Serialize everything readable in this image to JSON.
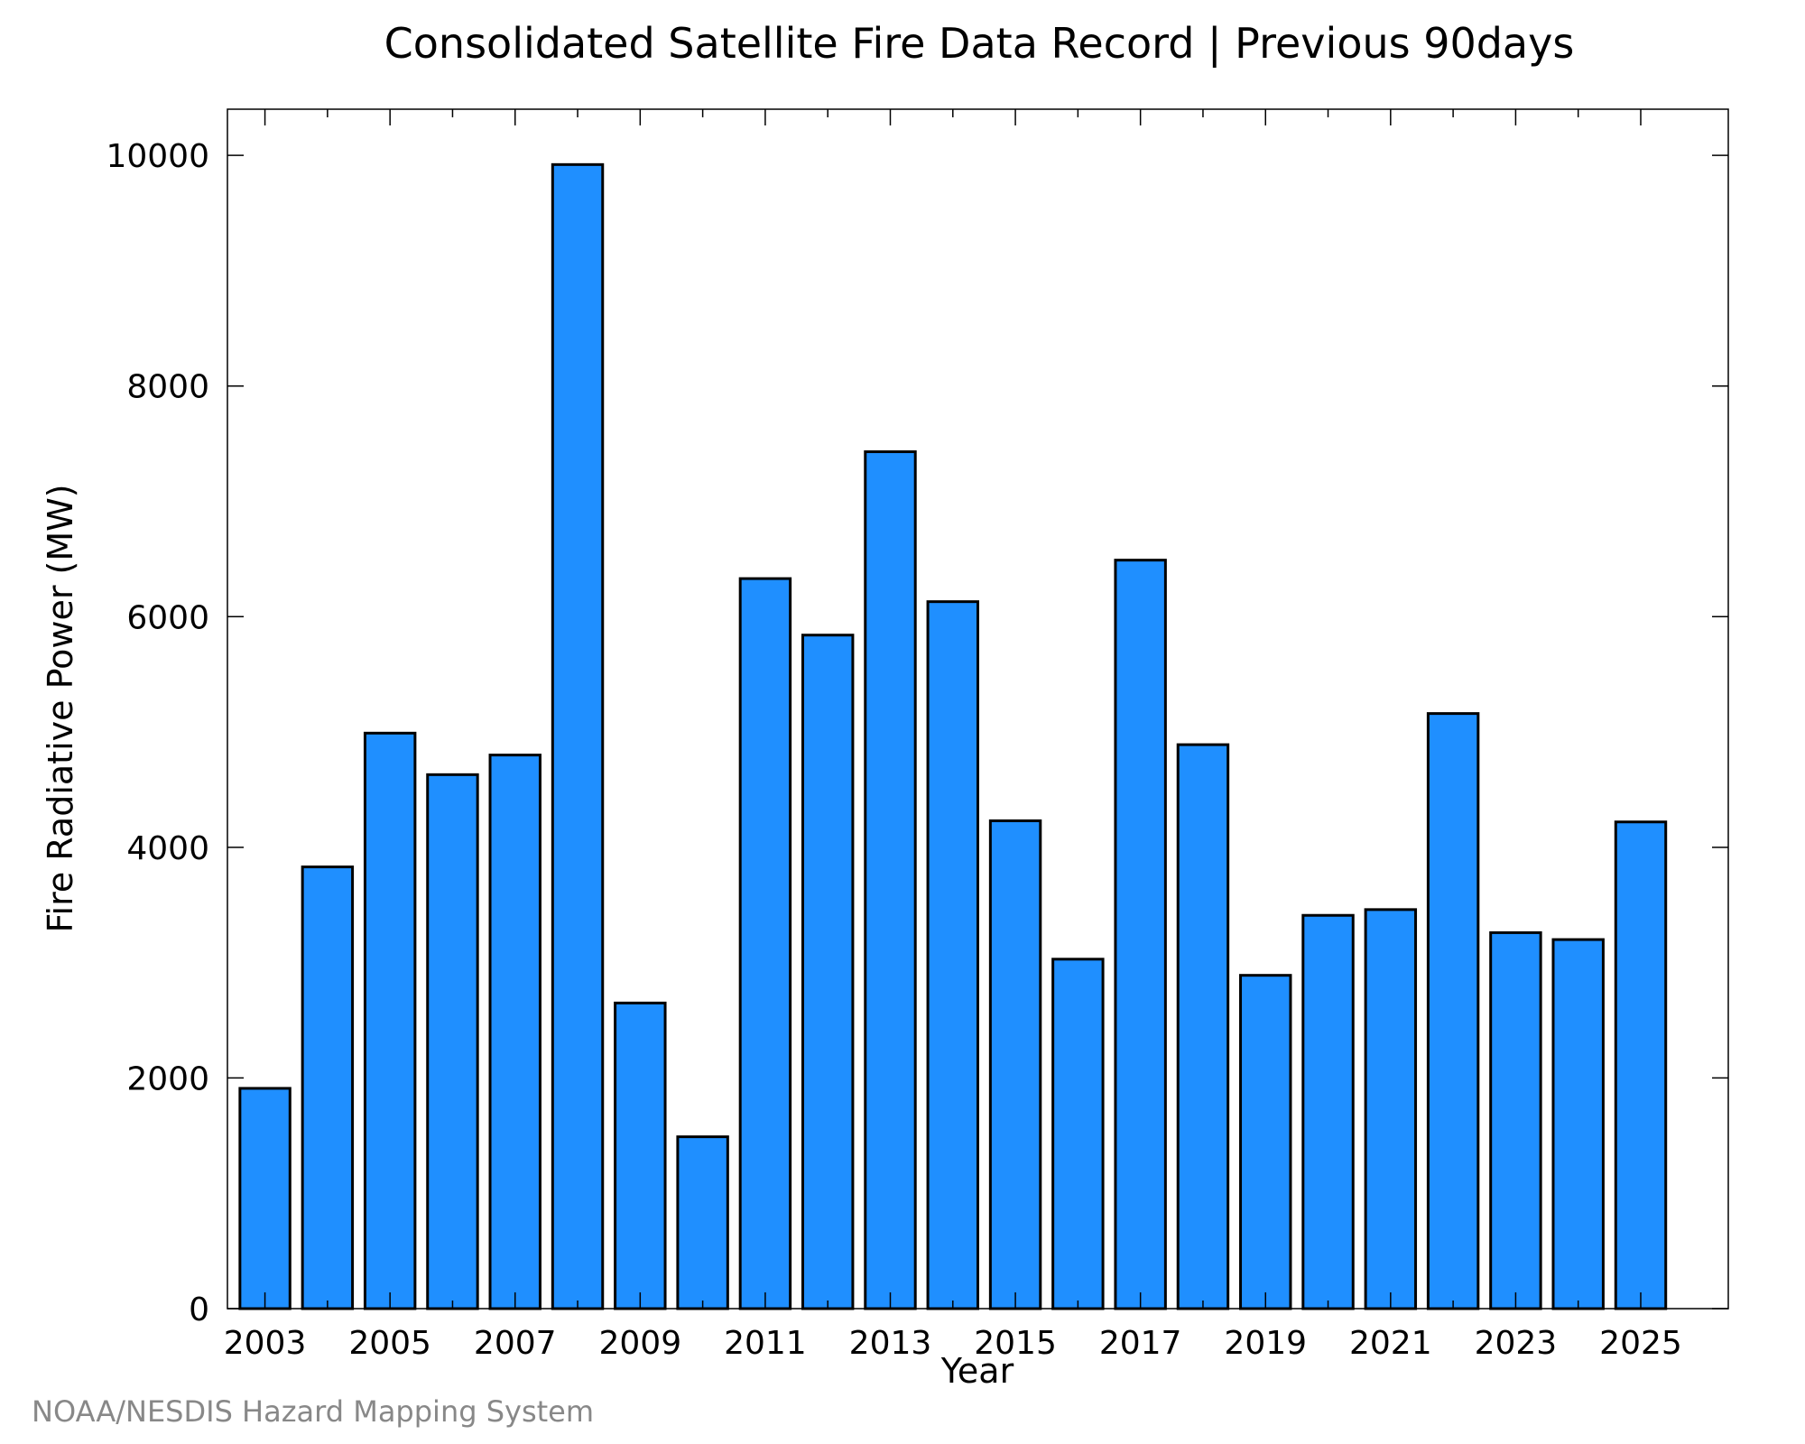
{
  "chart_data": {
    "type": "bar",
    "title": "Consolidated Satellite Fire Data Record | Previous 90days",
    "xlabel": "Year",
    "ylabel": "Fire Radiative Power (MW)",
    "categories": [
      2003,
      2004,
      2005,
      2006,
      2007,
      2008,
      2009,
      2010,
      2011,
      2012,
      2013,
      2014,
      2015,
      2016,
      2017,
      2018,
      2019,
      2020,
      2021,
      2022,
      2023,
      2024,
      2025
    ],
    "x_tick_labels": [
      "2003",
      "2005",
      "2007",
      "2009",
      "2011",
      "2013",
      "2015",
      "2017",
      "2019",
      "2021",
      "2023",
      "2025"
    ],
    "values": [
      1910,
      3830,
      4990,
      4630,
      4800,
      9920,
      2650,
      1490,
      6330,
      5840,
      7430,
      6130,
      4230,
      3030,
      6490,
      4890,
      2890,
      3410,
      3460,
      5160,
      3260,
      3200,
      4220
    ],
    "y_ticks": [
      0,
      2000,
      4000,
      6000,
      8000,
      10000
    ],
    "ylim": [
      0,
      10400
    ],
    "xlim": [
      2002.4,
      2026.4
    ],
    "bar_color": "#1f8fff",
    "grid": false,
    "legend": "none"
  },
  "footer": {
    "credit": "NOAA/NESDIS Hazard Mapping System"
  }
}
